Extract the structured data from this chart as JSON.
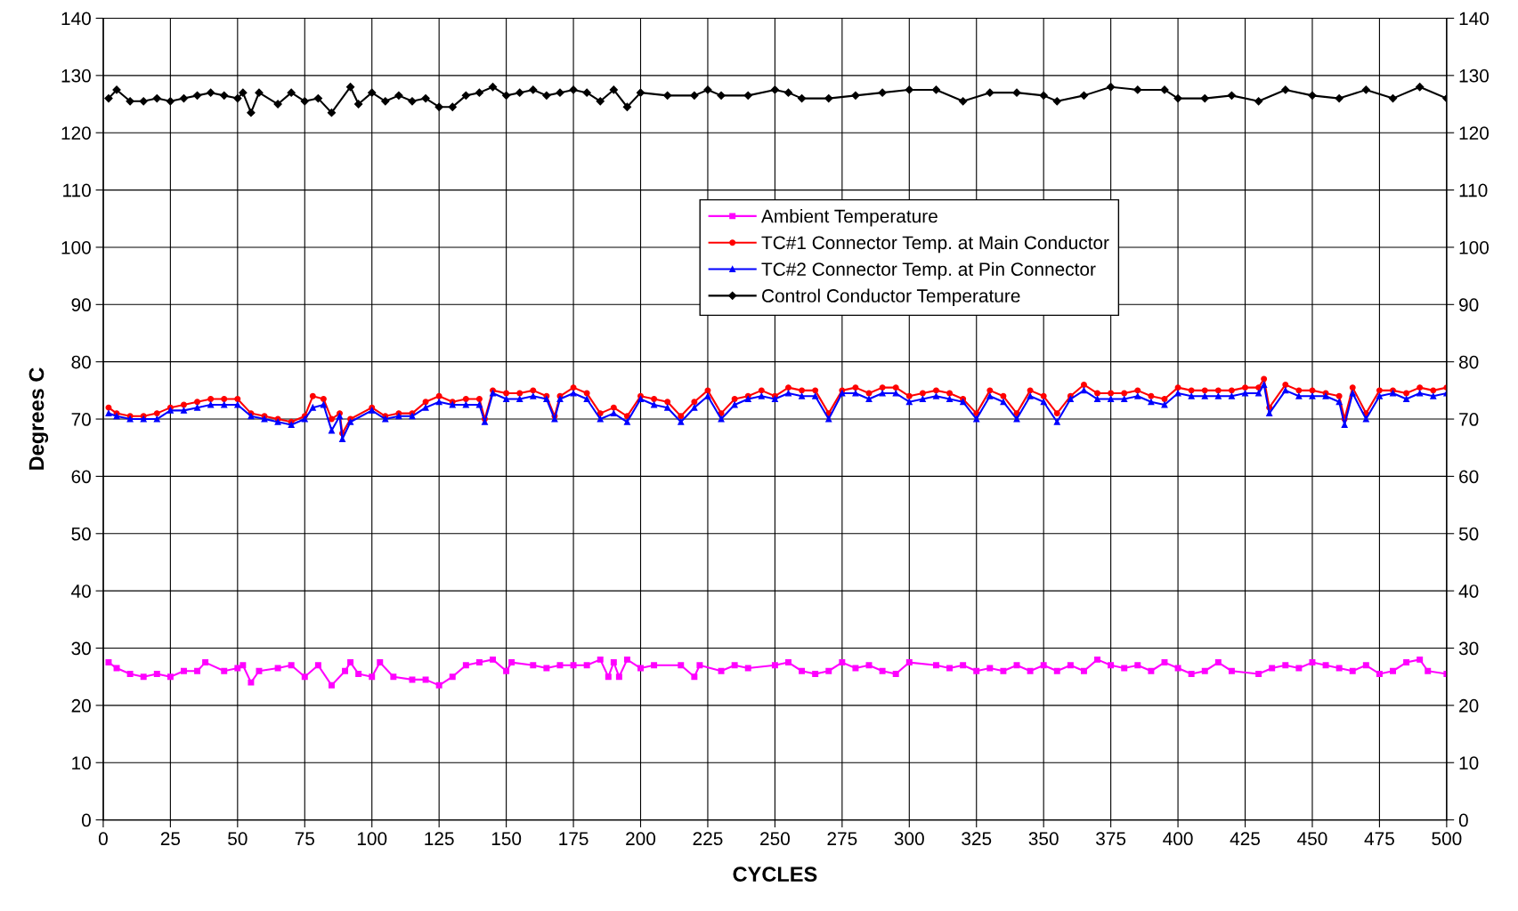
{
  "chart_data": {
    "type": "line",
    "xlabel": "CYCLES",
    "ylabel": "Degrees C",
    "xlim": [
      0,
      500
    ],
    "xticks": [
      0,
      25,
      50,
      75,
      100,
      125,
      150,
      175,
      200,
      225,
      250,
      275,
      300,
      325,
      350,
      375,
      400,
      425,
      450,
      475,
      500
    ],
    "ylim": [
      0,
      140
    ],
    "yticks": [
      0,
      10,
      20,
      30,
      40,
      50,
      60,
      70,
      80,
      90,
      100,
      110,
      120,
      130,
      140
    ],
    "y2lim": [
      0,
      140
    ],
    "y2ticks": [
      0,
      10,
      20,
      30,
      40,
      50,
      60,
      70,
      80,
      90,
      100,
      110,
      120,
      130,
      140
    ],
    "grid": true,
    "legend": "top",
    "line_style": "solid",
    "series": [
      {
        "name": "Ambient Temperature",
        "color": "#ff00ff",
        "marker": "square",
        "x": [
          2,
          5,
          10,
          15,
          20,
          25,
          30,
          35,
          38,
          45,
          50,
          52,
          55,
          58,
          65,
          70,
          75,
          80,
          85,
          90,
          92,
          95,
          100,
          103,
          108,
          115,
          120,
          125,
          130,
          135,
          140,
          145,
          150,
          152,
          160,
          165,
          170,
          175,
          180,
          185,
          188,
          190,
          192,
          195,
          200,
          205,
          215,
          220,
          222,
          230,
          235,
          240,
          250,
          255,
          260,
          265,
          270,
          275,
          280,
          285,
          290,
          295,
          300,
          310,
          315,
          320,
          325,
          330,
          335,
          340,
          345,
          350,
          355,
          360,
          365,
          370,
          375,
          380,
          385,
          390,
          395,
          400,
          405,
          410,
          415,
          420,
          430,
          435,
          440,
          445,
          450,
          455,
          460,
          465,
          470,
          475,
          480,
          485,
          490,
          493,
          500
        ],
        "values": [
          27.5,
          26.5,
          25.5,
          25,
          25.5,
          25,
          26,
          26,
          27.5,
          26,
          26.5,
          27,
          24,
          26,
          26.5,
          27,
          25,
          27,
          23.5,
          26,
          27.5,
          25.5,
          25,
          27.5,
          25,
          24.5,
          24.5,
          23.5,
          25,
          27,
          27.5,
          28,
          26,
          27.5,
          27,
          26.5,
          27,
          27,
          27,
          28,
          25,
          27.5,
          25,
          28,
          26.5,
          27,
          27,
          25,
          27,
          26,
          27,
          26.5,
          27,
          27.5,
          26,
          25.5,
          26,
          27.5,
          26.5,
          27,
          26,
          25.5,
          27.5,
          27,
          26.5,
          27,
          26,
          26.5,
          26,
          27,
          26,
          27,
          26,
          27,
          26,
          28,
          27,
          26.5,
          27,
          26,
          27.5,
          26.5,
          25.5,
          26,
          27.5,
          26,
          25.5,
          26.5,
          27,
          26.5,
          27.5,
          27,
          26.5,
          26,
          27,
          25.5,
          26,
          27.5,
          28,
          26,
          25.5
        ]
      },
      {
        "name": "TC#1 Connector Temp. at Main Conductor",
        "color": "#ff0000",
        "marker": "circle",
        "x": [
          2,
          5,
          10,
          15,
          20,
          25,
          30,
          35,
          40,
          45,
          50,
          55,
          60,
          65,
          70,
          75,
          78,
          82,
          85,
          88,
          89,
          92,
          100,
          105,
          110,
          115,
          120,
          125,
          130,
          135,
          140,
          142,
          145,
          150,
          155,
          160,
          165,
          168,
          170,
          175,
          180,
          185,
          190,
          195,
          200,
          205,
          210,
          215,
          220,
          225,
          230,
          235,
          240,
          245,
          250,
          255,
          260,
          265,
          270,
          275,
          280,
          285,
          290,
          295,
          300,
          305,
          310,
          315,
          320,
          325,
          330,
          335,
          340,
          345,
          350,
          355,
          360,
          365,
          370,
          375,
          380,
          385,
          390,
          395,
          400,
          405,
          410,
          415,
          420,
          425,
          430,
          432,
          434,
          440,
          445,
          450,
          455,
          460,
          462,
          465,
          470,
          475,
          480,
          485,
          490,
          495,
          500
        ],
        "values": [
          72,
          71,
          70.5,
          70.5,
          71,
          72,
          72.5,
          73,
          73.5,
          73.5,
          73.5,
          71,
          70.5,
          70,
          69.5,
          70.5,
          74,
          73.5,
          70,
          71,
          67.5,
          70,
          72,
          70.5,
          71,
          71,
          73,
          74,
          73,
          73.5,
          73.5,
          70,
          75,
          74.5,
          74.5,
          75,
          74,
          70.5,
          74,
          75.5,
          74.5,
          71,
          72,
          70.5,
          74,
          73.5,
          73,
          70.5,
          73,
          75,
          71,
          73.5,
          74,
          75,
          74,
          75.5,
          75,
          75,
          71,
          75,
          75.5,
          74.5,
          75.5,
          75.5,
          74,
          74.5,
          75,
          74.5,
          73.5,
          71,
          75,
          74,
          71,
          75,
          74,
          71,
          74,
          76,
          74.5,
          74.5,
          74.5,
          75,
          74,
          73.5,
          75.5,
          75,
          75,
          75,
          75,
          75.5,
          75.5,
          77,
          72,
          76,
          75,
          75,
          74.5,
          74,
          70,
          75.5,
          71,
          75,
          75,
          74.5,
          75.5,
          75,
          75.5
        ]
      },
      {
        "name": "TC#2 Connector Temp. at Pin Connector",
        "color": "#0000ff",
        "marker": "triangle",
        "x": [
          2,
          5,
          10,
          15,
          20,
          25,
          30,
          35,
          40,
          45,
          50,
          55,
          60,
          65,
          70,
          75,
          78,
          82,
          85,
          88,
          89,
          92,
          100,
          105,
          110,
          115,
          120,
          125,
          130,
          135,
          140,
          142,
          145,
          150,
          155,
          160,
          165,
          168,
          170,
          175,
          180,
          185,
          190,
          195,
          200,
          205,
          210,
          215,
          220,
          225,
          230,
          235,
          240,
          245,
          250,
          255,
          260,
          265,
          270,
          275,
          280,
          285,
          290,
          295,
          300,
          305,
          310,
          315,
          320,
          325,
          330,
          335,
          340,
          345,
          350,
          355,
          360,
          365,
          370,
          375,
          380,
          385,
          390,
          395,
          400,
          405,
          410,
          415,
          420,
          425,
          430,
          432,
          434,
          440,
          445,
          450,
          455,
          460,
          462,
          465,
          470,
          475,
          480,
          485,
          490,
          495,
          500
        ],
        "values": [
          71,
          70.5,
          70,
          70,
          70,
          71.5,
          71.5,
          72,
          72.5,
          72.5,
          72.5,
          70.5,
          70,
          69.5,
          69,
          70,
          72,
          72.5,
          68,
          70.5,
          66.5,
          69.5,
          71.5,
          70,
          70.5,
          70.5,
          72,
          73,
          72.5,
          72.5,
          72.5,
          69.5,
          74.5,
          73.5,
          73.5,
          74,
          73.5,
          70,
          73.5,
          74.5,
          73.5,
          70,
          71,
          69.5,
          73.5,
          72.5,
          72,
          69.5,
          72,
          74,
          70,
          72.5,
          73.5,
          74,
          73.5,
          74.5,
          74,
          74,
          70,
          74.5,
          74.5,
          73.5,
          74.5,
          74.5,
          73,
          73.5,
          74,
          73.5,
          73,
          70,
          74,
          73,
          70,
          74,
          73,
          69.5,
          73.5,
          75,
          73.5,
          73.5,
          73.5,
          74,
          73,
          72.5,
          74.5,
          74,
          74,
          74,
          74,
          74.5,
          74.5,
          76,
          71,
          75,
          74,
          74,
          74,
          73,
          69,
          74.5,
          70,
          74,
          74.5,
          73.5,
          74.5,
          74,
          74.5
        ]
      },
      {
        "name": "Control Conductor Temperature",
        "color": "#000000",
        "marker": "diamond",
        "x": [
          2,
          5,
          10,
          15,
          20,
          25,
          30,
          35,
          40,
          45,
          50,
          52,
          55,
          58,
          65,
          70,
          75,
          80,
          85,
          92,
          95,
          100,
          105,
          110,
          115,
          120,
          125,
          130,
          135,
          140,
          145,
          150,
          155,
          160,
          165,
          170,
          175,
          180,
          185,
          190,
          195,
          200,
          210,
          220,
          225,
          230,
          240,
          250,
          255,
          260,
          270,
          280,
          290,
          300,
          310,
          320,
          330,
          340,
          350,
          355,
          365,
          375,
          385,
          395,
          400,
          410,
          420,
          430,
          440,
          450,
          460,
          470,
          480,
          490,
          500
        ],
        "values": [
          126,
          127.5,
          125.5,
          125.5,
          126,
          125.5,
          126,
          126.5,
          127,
          126.5,
          126,
          127,
          123.5,
          127,
          125,
          127,
          125.5,
          126,
          123.5,
          128,
          125,
          127,
          125.5,
          126.5,
          125.5,
          126,
          124.5,
          124.5,
          126.5,
          127,
          128,
          126.5,
          127,
          127.5,
          126.5,
          127,
          127.5,
          127,
          125.5,
          127.5,
          124.5,
          127,
          126.5,
          126.5,
          127.5,
          126.5,
          126.5,
          127.5,
          127,
          126,
          126,
          126.5,
          127,
          127.5,
          127.5,
          125.5,
          127,
          127,
          126.5,
          125.5,
          126.5,
          128,
          127.5,
          127.5,
          126,
          126,
          126.5,
          125.5,
          127.5,
          126.5,
          126,
          127.5,
          126,
          128,
          126
        ]
      }
    ]
  }
}
